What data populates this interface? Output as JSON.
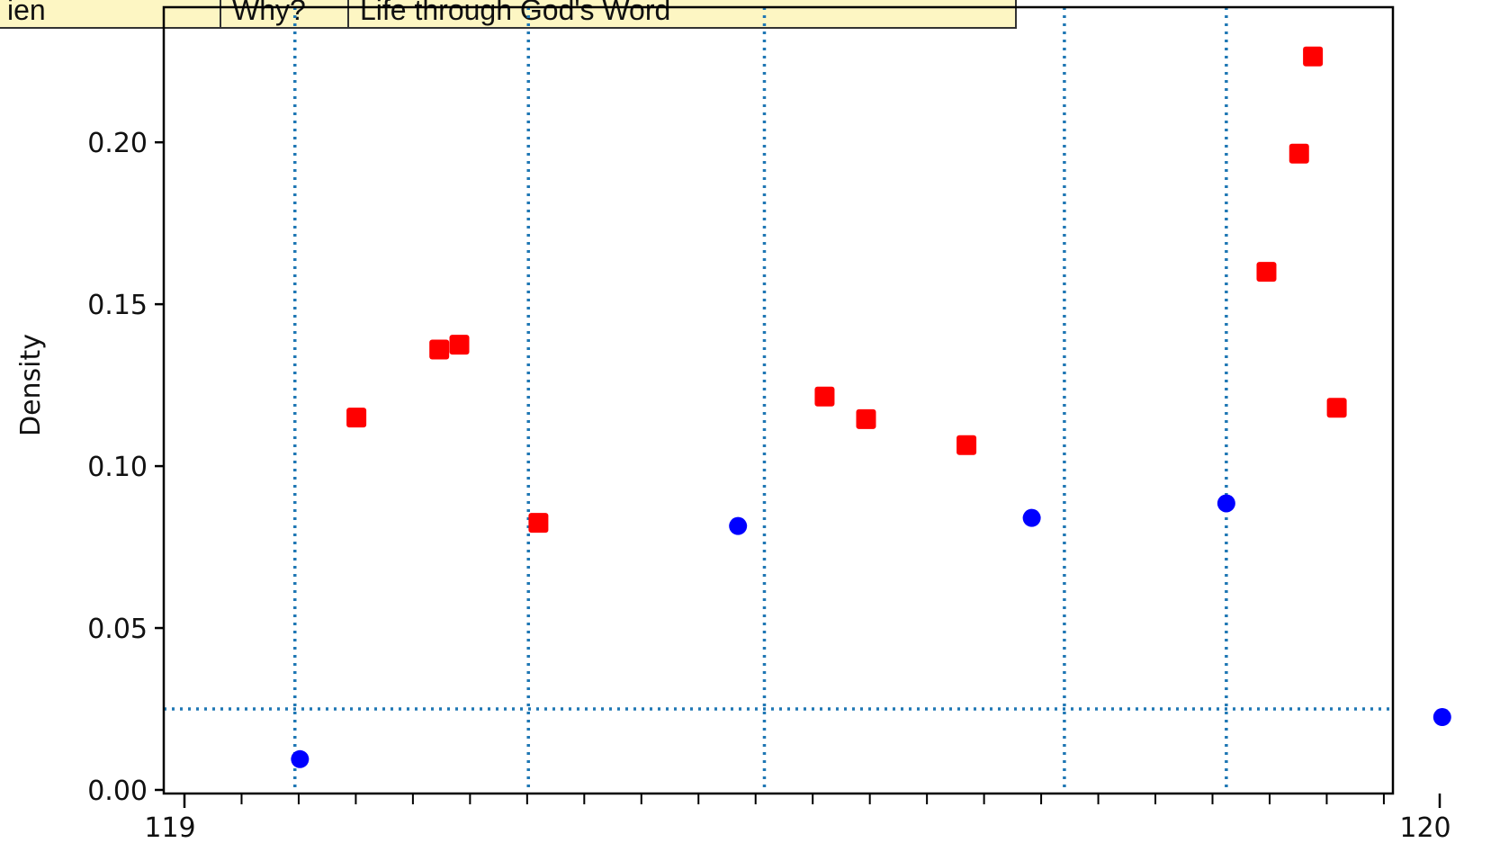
{
  "annotation_table": {
    "cells": [
      "ien",
      "Why?",
      "Life through God's Word"
    ]
  },
  "chart_data": {
    "type": "scatter",
    "xlabel": "",
    "ylabel": "Density",
    "xlim": [
      119,
      120
    ],
    "ylim": [
      0,
      0.2295
    ],
    "x_ticks": [
      119,
      120
    ],
    "x_tick_labels": [
      "119",
      "120"
    ],
    "x_minor_tick_step": 0.0455,
    "y_ticks": [
      0.0,
      0.05,
      0.1,
      0.15,
      0.2
    ],
    "y_tick_labels": [
      "0.00",
      "0.05",
      "0.10",
      "0.15",
      "0.20"
    ],
    "grid": false,
    "reference_lines": {
      "style": "dotted",
      "color": "#1f77b4",
      "vertical_x": [
        119.088,
        119.274,
        119.462,
        119.701,
        119.83
      ],
      "horizontal_y": [
        0.025
      ]
    },
    "series": [
      {
        "marker": "circle",
        "color": "#0000ff",
        "points": [
          [
            119.092,
            0.0095
          ],
          [
            119.441,
            0.0815
          ],
          [
            119.675,
            0.084
          ],
          [
            119.83,
            0.0885
          ],
          [
            120.002,
            0.0225
          ]
        ]
      },
      {
        "marker": "square",
        "color": "#ff0000",
        "points": [
          [
            119.137,
            0.115
          ],
          [
            119.203,
            0.136
          ],
          [
            119.219,
            0.1375
          ],
          [
            119.282,
            0.0825
          ],
          [
            119.51,
            0.1215
          ],
          [
            119.543,
            0.1145
          ],
          [
            119.623,
            0.1065
          ],
          [
            119.862,
            0.16
          ],
          [
            119.888,
            0.1965
          ],
          [
            119.899,
            0.2265
          ],
          [
            119.918,
            0.118
          ]
        ]
      }
    ]
  }
}
